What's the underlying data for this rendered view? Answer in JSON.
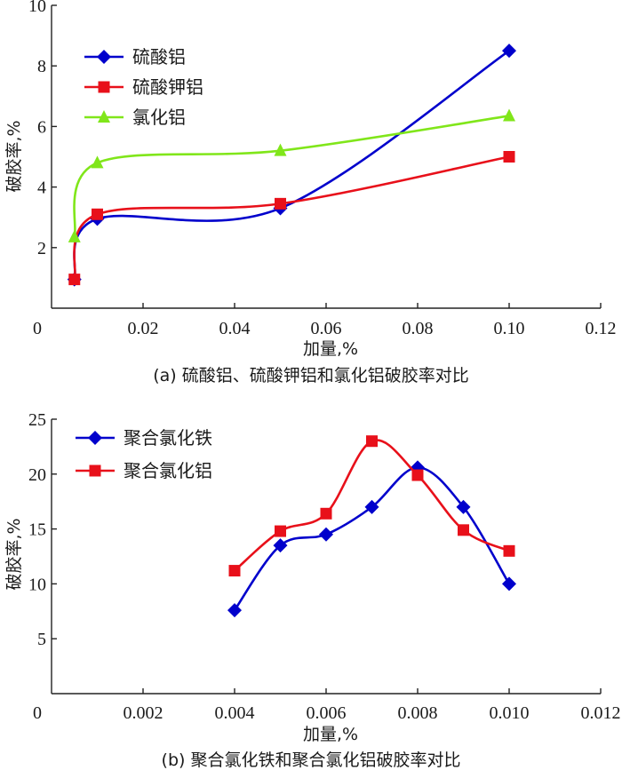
{
  "chart_data": [
    {
      "id": "a",
      "type": "line",
      "smooth": true,
      "title": "(a) 硫酸铝、硫酸钾铝和氯化铝破胶率对比",
      "xlabel": "加量,%",
      "ylabel": "破胶率,%",
      "xlim": [
        0,
        0.12
      ],
      "ylim": [
        0,
        10
      ],
      "xticks": [
        0,
        0.02,
        0.04,
        0.06,
        0.08,
        0.1,
        0.12
      ],
      "xtick_labels": [
        "0",
        "0.02",
        "0.04",
        "0.06",
        "0.08",
        "0.10",
        "0.12"
      ],
      "yticks": [
        2,
        4,
        6,
        8,
        10
      ],
      "ytick_labels": [
        "2",
        "4",
        "6",
        "8",
        "10"
      ],
      "grid": false,
      "legend_position": "top-left",
      "series": [
        {
          "name": "硫酸铝",
          "color": "#0000cc",
          "marker": "diamond",
          "x": [
            0.005,
            0.01,
            0.05,
            0.1
          ],
          "y": [
            0.95,
            2.95,
            3.3,
            8.5
          ]
        },
        {
          "name": "硫酸钾铝",
          "color": "#e8101a",
          "marker": "square",
          "x": [
            0.005,
            0.01,
            0.05,
            0.1
          ],
          "y": [
            0.95,
            3.1,
            3.45,
            5.0
          ]
        },
        {
          "name": "氯化铝",
          "color": "#80e61a",
          "marker": "triangle",
          "x": [
            0.005,
            0.01,
            0.05,
            0.1
          ],
          "y": [
            2.35,
            4.8,
            5.2,
            6.35
          ]
        }
      ]
    },
    {
      "id": "b",
      "type": "line",
      "smooth": true,
      "title": "(b) 聚合氯化铁和聚合氯化铝破胶率对比",
      "xlabel": "加量,%",
      "ylabel": "破胶率,%",
      "xlim": [
        0,
        0.012
      ],
      "ylim": [
        0,
        25
      ],
      "xticks": [
        0,
        0.002,
        0.004,
        0.006,
        0.008,
        0.01,
        0.012
      ],
      "xtick_labels": [
        "0",
        "0.002",
        "0.004",
        "0.006",
        "0.008",
        "0.010",
        "0.012"
      ],
      "yticks": [
        5,
        10,
        15,
        20,
        25
      ],
      "ytick_labels": [
        "5",
        "10",
        "15",
        "20",
        "25"
      ],
      "grid": false,
      "legend_position": "top-left",
      "series": [
        {
          "name": "聚合氯化铁",
          "color": "#0000cc",
          "marker": "diamond",
          "x": [
            0.004,
            0.005,
            0.006,
            0.007,
            0.008,
            0.009,
            0.01
          ],
          "y": [
            7.6,
            13.5,
            14.5,
            17.0,
            20.6,
            17.0,
            10.0
          ]
        },
        {
          "name": "聚合氯化铝",
          "color": "#e8101a",
          "marker": "square",
          "x": [
            0.004,
            0.005,
            0.006,
            0.007,
            0.008,
            0.009,
            0.01
          ],
          "y": [
            11.2,
            14.8,
            16.4,
            23.0,
            19.9,
            14.9,
            13.0
          ]
        }
      ]
    }
  ]
}
